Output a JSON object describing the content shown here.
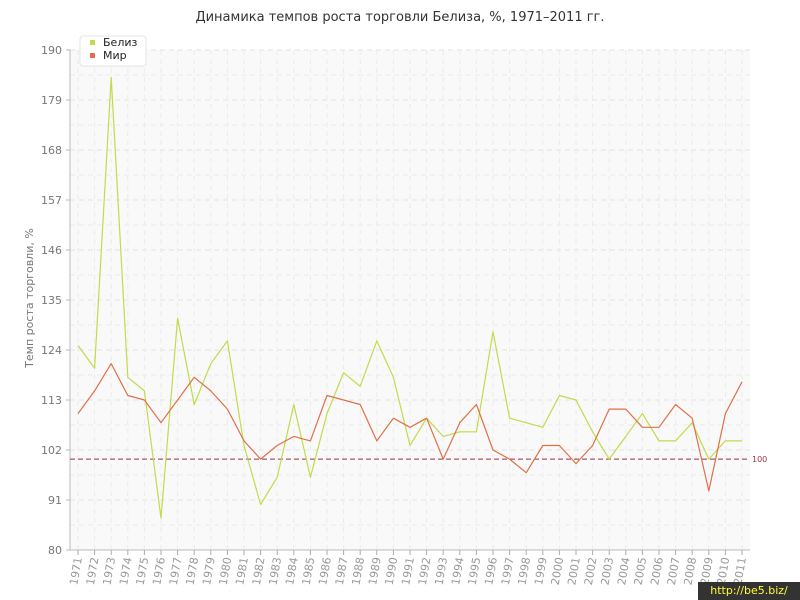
{
  "chart_data": {
    "type": "line",
    "title": "Динамика темпов роста торговли Белиза, %, 1971–2011 гг.",
    "xlabel": "",
    "ylabel": "Темп роста торговли, %",
    "ylim": [
      80,
      190
    ],
    "yticks": [
      80,
      91,
      102,
      113,
      124,
      135,
      146,
      157,
      168,
      179,
      190
    ],
    "x": [
      "1971",
      "1972",
      "1973",
      "1974",
      "1975",
      "1976",
      "1977",
      "1978",
      "1979",
      "1980",
      "1981",
      "1982",
      "1983",
      "1984",
      "1985",
      "1986",
      "1987",
      "1988",
      "1989",
      "1990",
      "1991",
      "1992",
      "1993",
      "1994",
      "1995",
      "1996",
      "1997",
      "1998",
      "1999",
      "2000",
      "2001",
      "2002",
      "2003",
      "2004",
      "2005",
      "2006",
      "2007",
      "2008",
      "2009",
      "2010",
      "2011"
    ],
    "series": [
      {
        "name": "Белиз",
        "color": "#bfdc4a",
        "values": [
          125,
          120,
          184,
          118,
          115,
          87,
          131,
          112,
          121,
          126,
          103,
          90,
          96,
          112,
          96,
          110,
          119,
          116,
          126,
          118,
          103,
          109,
          105,
          106,
          106,
          128,
          109,
          108,
          107,
          114,
          113,
          106,
          100,
          105,
          110,
          104,
          104,
          108,
          100,
          104,
          104
        ]
      },
      {
        "name": "Мир",
        "color": "#e07048",
        "values": [
          110,
          115,
          121,
          114,
          113,
          108,
          113,
          118,
          115,
          111,
          104,
          100,
          103,
          105,
          104,
          114,
          113,
          112,
          104,
          109,
          107,
          109,
          100,
          108,
          112,
          102,
          100,
          97,
          103,
          103,
          99,
          103,
          111,
          111,
          107,
          107,
          112,
          109,
          93,
          110,
          117
        ]
      }
    ],
    "reference_line": {
      "value": 100,
      "label": "100",
      "color": "#993344"
    },
    "legend_position": "top-left",
    "grid": true
  },
  "watermark": "http://be5.biz/"
}
